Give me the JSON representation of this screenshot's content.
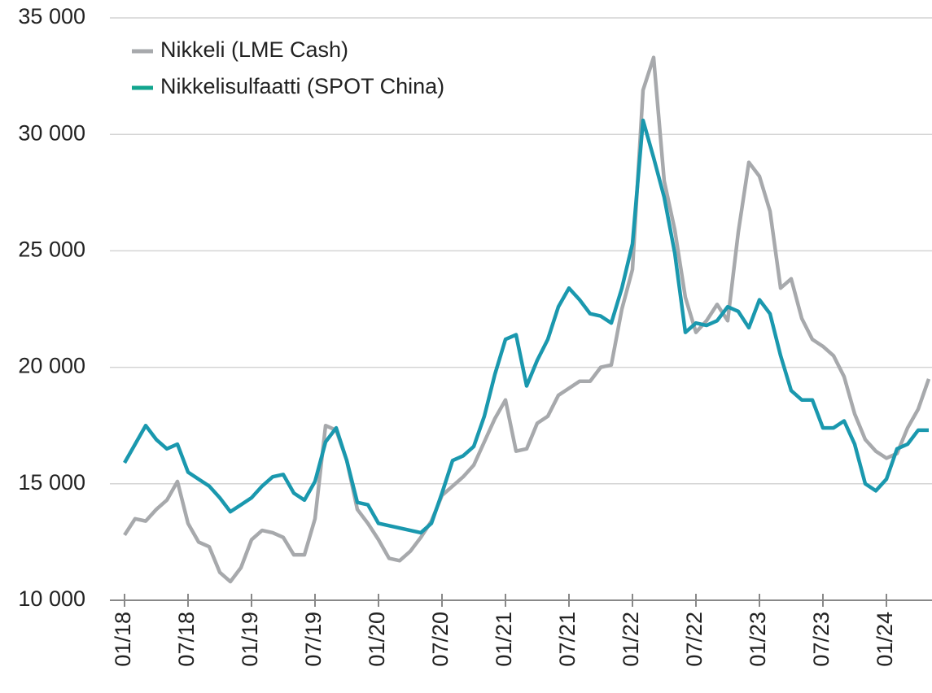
{
  "chart_data": {
    "type": "line",
    "categories": [
      "01/18",
      null,
      null,
      null,
      null,
      null,
      "07/18",
      null,
      null,
      null,
      null,
      null,
      "01/19",
      null,
      null,
      null,
      null,
      null,
      "07/19",
      null,
      null,
      null,
      null,
      null,
      "01/20",
      null,
      null,
      null,
      null,
      null,
      "07/20",
      null,
      null,
      null,
      null,
      null,
      "01/21",
      null,
      null,
      null,
      null,
      null,
      "07/21",
      null,
      null,
      null,
      null,
      null,
      "01/22",
      null,
      null,
      null,
      null,
      null,
      "07/22",
      null,
      null,
      null,
      null,
      null,
      "01/23",
      null,
      null,
      null,
      null,
      null,
      "07/23",
      null,
      null,
      null,
      null,
      null,
      "01/24",
      null,
      null,
      null,
      null
    ],
    "series": [
      {
        "name": "Nikkeli (LME Cash)",
        "color": "#a7a9ac",
        "values": [
          12800,
          13500,
          13400,
          13900,
          14300,
          15100,
          13300,
          12500,
          12300,
          11200,
          10800,
          11400,
          12600,
          13000,
          12900,
          12700,
          11950,
          11950,
          13500,
          17500,
          17300,
          16000,
          13900,
          13300,
          12600,
          11800,
          11700,
          12100,
          12700,
          13400,
          14500,
          14900,
          15300,
          15800,
          16800,
          17800,
          18600,
          16400,
          16500,
          17600,
          17900,
          18800,
          19100,
          19400,
          19400,
          20000,
          20100,
          22500,
          24200,
          31900,
          33300,
          28000,
          25900,
          23000,
          21500,
          22000,
          22700,
          22000,
          25800,
          28800,
          28200,
          26700,
          23400,
          23800,
          22100,
          21200,
          20900,
          20500,
          19600,
          18000,
          16900,
          16400,
          16100,
          16300,
          17400,
          18200,
          19500
        ]
      },
      {
        "name": "Nikkelisulfaatti (SPOT China)",
        "color": "#1a98ae",
        "values": [
          15900,
          16700,
          17500,
          16900,
          16500,
          16700,
          15500,
          15200,
          14900,
          14400,
          13800,
          14100,
          14400,
          14900,
          15300,
          15400,
          14600,
          14300,
          15100,
          16800,
          17400,
          16000,
          14200,
          14100,
          13300,
          13200,
          13100,
          13000,
          12900,
          13300,
          14600,
          16000,
          16200,
          16600,
          17900,
          19700,
          21200,
          21400,
          19200,
          20300,
          21200,
          22600,
          23400,
          22900,
          22300,
          22200,
          21900,
          23400,
          25300,
          30600,
          29000,
          27300,
          24900,
          21500,
          21900,
          21800,
          22000,
          22600,
          22400,
          21700,
          22900,
          22300,
          20500,
          19000,
          18600,
          18600,
          17400,
          17400,
          17700,
          16700,
          15000,
          14700,
          15200,
          16500,
          16700,
          17300,
          17300
        ]
      }
    ],
    "ylim": [
      10000,
      35000
    ],
    "yticks": [
      {
        "value": 10000,
        "label": "10 000"
      },
      {
        "value": 15000,
        "label": "15 000"
      },
      {
        "value": 20000,
        "label": "20 000"
      },
      {
        "value": 25000,
        "label": "25 000"
      },
      {
        "value": 30000,
        "label": "30 000"
      },
      {
        "value": 35000,
        "label": "35 000"
      }
    ],
    "grid": true,
    "legend": "top-left"
  }
}
